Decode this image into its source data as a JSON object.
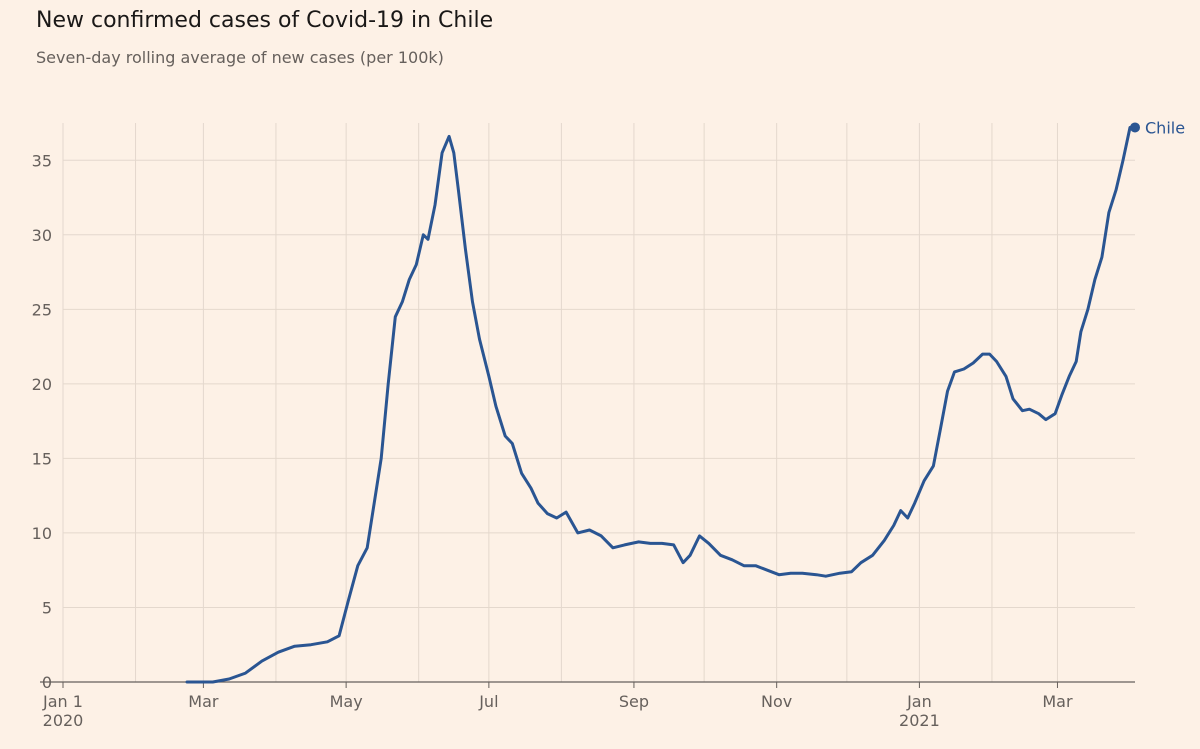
{
  "title": "New confirmed cases of Covid-19 in Chile",
  "subtitle": "Seven-day rolling average of new cases (per 100k)",
  "colors": {
    "background": "#fdf1e6",
    "line": "#2a5592",
    "grid": "#e4d8cd",
    "axis": "#66605c"
  },
  "chart_data": {
    "type": "line",
    "title": "New confirmed cases of Covid-19 in Chile",
    "subtitle": "Seven-day rolling average of new cases (per 100k)",
    "xlabel": "",
    "ylabel": "",
    "xlim": [
      "2020-01-01",
      "2021-03-27"
    ],
    "ylim": [
      0,
      37.5
    ],
    "grid": true,
    "legend": "end-of-line label",
    "y_ticks": [
      0,
      5,
      10,
      15,
      20,
      25,
      30,
      35
    ],
    "x_ticks": [
      {
        "date": "2020-01-01",
        "label": "Jan 1",
        "sublabel": "2020"
      },
      {
        "date": "2020-03-01",
        "label": "Mar",
        "sublabel": ""
      },
      {
        "date": "2020-05-01",
        "label": "May",
        "sublabel": ""
      },
      {
        "date": "2020-07-01",
        "label": "Jul",
        "sublabel": ""
      },
      {
        "date": "2020-09-01",
        "label": "Sep",
        "sublabel": ""
      },
      {
        "date": "2020-11-01",
        "label": "Nov",
        "sublabel": ""
      },
      {
        "date": "2021-01-01",
        "label": "Jan",
        "sublabel": "2021"
      },
      {
        "date": "2021-03-01",
        "label": "Mar",
        "sublabel": ""
      }
    ],
    "series": [
      {
        "name": "Chile",
        "points": [
          [
            "2020-02-23",
            0
          ],
          [
            "2020-03-05",
            0
          ],
          [
            "2020-03-12",
            0.2
          ],
          [
            "2020-03-19",
            0.6
          ],
          [
            "2020-03-26",
            1.4
          ],
          [
            "2020-04-02",
            2.0
          ],
          [
            "2020-04-09",
            2.4
          ],
          [
            "2020-04-16",
            2.5
          ],
          [
            "2020-04-23",
            2.7
          ],
          [
            "2020-04-28",
            3.1
          ],
          [
            "2020-05-02",
            5.5
          ],
          [
            "2020-05-06",
            7.8
          ],
          [
            "2020-05-10",
            9.0
          ],
          [
            "2020-05-13",
            12.0
          ],
          [
            "2020-05-16",
            15.0
          ],
          [
            "2020-05-19",
            20.0
          ],
          [
            "2020-05-22",
            24.5
          ],
          [
            "2020-05-25",
            25.5
          ],
          [
            "2020-05-28",
            27.0
          ],
          [
            "2020-05-31",
            28.0
          ],
          [
            "2020-06-03",
            30.0
          ],
          [
            "2020-06-05",
            29.7
          ],
          [
            "2020-06-08",
            32.0
          ],
          [
            "2020-06-11",
            35.5
          ],
          [
            "2020-06-14",
            36.6
          ],
          [
            "2020-06-16",
            35.5
          ],
          [
            "2020-06-18",
            33.0
          ],
          [
            "2020-06-21",
            29.0
          ],
          [
            "2020-06-24",
            25.5
          ],
          [
            "2020-06-27",
            23.0
          ],
          [
            "2020-07-01",
            20.5
          ],
          [
            "2020-07-04",
            18.5
          ],
          [
            "2020-07-08",
            16.5
          ],
          [
            "2020-07-11",
            16.0
          ],
          [
            "2020-07-15",
            14.0
          ],
          [
            "2020-07-19",
            13.0
          ],
          [
            "2020-07-22",
            12.0
          ],
          [
            "2020-07-26",
            11.3
          ],
          [
            "2020-07-30",
            11.0
          ],
          [
            "2020-08-03",
            11.4
          ],
          [
            "2020-08-08",
            10.0
          ],
          [
            "2020-08-13",
            10.2
          ],
          [
            "2020-08-18",
            9.8
          ],
          [
            "2020-08-23",
            9.0
          ],
          [
            "2020-08-28",
            9.2
          ],
          [
            "2020-09-03",
            9.4
          ],
          [
            "2020-09-08",
            9.3
          ],
          [
            "2020-09-13",
            9.3
          ],
          [
            "2020-09-18",
            9.2
          ],
          [
            "2020-09-22",
            8.0
          ],
          [
            "2020-09-25",
            8.5
          ],
          [
            "2020-09-29",
            9.8
          ],
          [
            "2020-10-03",
            9.3
          ],
          [
            "2020-10-08",
            8.5
          ],
          [
            "2020-10-13",
            8.2
          ],
          [
            "2020-10-18",
            7.8
          ],
          [
            "2020-10-23",
            7.8
          ],
          [
            "2020-10-28",
            7.5
          ],
          [
            "2020-11-02",
            7.2
          ],
          [
            "2020-11-07",
            7.3
          ],
          [
            "2020-11-12",
            7.3
          ],
          [
            "2020-11-18",
            7.2
          ],
          [
            "2020-11-22",
            7.1
          ],
          [
            "2020-11-28",
            7.3
          ],
          [
            "2020-12-03",
            7.4
          ],
          [
            "2020-12-07",
            8.0
          ],
          [
            "2020-12-12",
            8.5
          ],
          [
            "2020-12-17",
            9.5
          ],
          [
            "2020-12-21",
            10.5
          ],
          [
            "2020-12-24",
            11.5
          ],
          [
            "2020-12-27",
            11.0
          ],
          [
            "2020-12-30",
            12.0
          ],
          [
            "2021-01-03",
            13.5
          ],
          [
            "2021-01-07",
            14.5
          ],
          [
            "2021-01-10",
            17.0
          ],
          [
            "2021-01-13",
            19.5
          ],
          [
            "2021-01-16",
            20.8
          ],
          [
            "2021-01-20",
            21.0
          ],
          [
            "2021-01-24",
            21.4
          ],
          [
            "2021-01-28",
            22.0
          ],
          [
            "2021-01-31",
            22.0
          ],
          [
            "2021-02-03",
            21.5
          ],
          [
            "2021-02-07",
            20.5
          ],
          [
            "2021-02-10",
            19.0
          ],
          [
            "2021-02-14",
            18.2
          ],
          [
            "2021-02-17",
            18.3
          ],
          [
            "2021-02-21",
            18.0
          ],
          [
            "2021-02-24",
            17.6
          ],
          [
            "2021-02-28",
            18.0
          ],
          [
            "2021-03-03",
            19.3
          ],
          [
            "2021-03-06",
            20.5
          ],
          [
            "2021-03-09",
            21.5
          ],
          [
            "2021-03-11",
            23.5
          ],
          [
            "2021-03-14",
            25.0
          ],
          [
            "2021-03-17",
            27.0
          ],
          [
            "2021-03-20",
            28.5
          ],
          [
            "2021-03-23",
            31.5
          ],
          [
            "2021-03-26",
            33.0
          ],
          [
            "2021-03-29",
            35.0
          ],
          [
            "2021-04-01",
            37.2
          ]
        ]
      }
    ]
  }
}
